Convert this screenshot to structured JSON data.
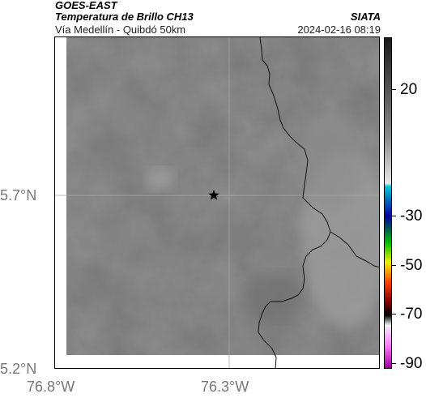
{
  "header": {
    "satellite": "GOES-EAST",
    "product": "Temperatura de Brillo CH13",
    "route": "Vía Medellín - Quibdó 50km",
    "org": "SIATA",
    "datetime": "2024-02-16 08:19"
  },
  "map": {
    "x_ticks": [
      "76.8°W",
      "76.3°W"
    ],
    "y_ticks": [
      "5.7°N",
      "5.2°N"
    ],
    "marker": "star",
    "marker_color": "#000000",
    "grid": true,
    "background_tone": "#7a7a7a"
  },
  "colorbar": {
    "ticks": [
      "20",
      "-30",
      "-50",
      "-70",
      "-90"
    ],
    "colors": [
      "#1a1a1a",
      "#8a8a8a",
      "#e8e8e8",
      "#00c8d8",
      "#0000a0",
      "#00c000",
      "#f0f000",
      "#ff4000",
      "#800000",
      "#000000",
      "#f0f0f0",
      "#ff80ff",
      "#a000a0"
    ]
  }
}
